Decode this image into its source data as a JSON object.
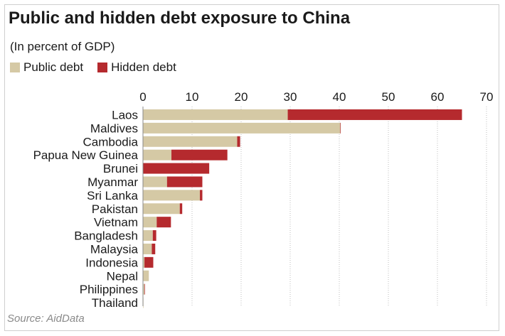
{
  "title": "Public and hidden debt exposure to China",
  "subtitle": "(In percent of GDP)",
  "source": "Source: AidData",
  "colors": {
    "public": "#d5c9a5",
    "hidden": "#b52a2e",
    "grid": "#bdbdbd",
    "text": "#1a1a1a"
  },
  "chart_data": {
    "type": "bar",
    "orientation": "horizontal",
    "stacked": true,
    "title": "Public and hidden debt exposure to China",
    "subtitle": "(In percent of GDP)",
    "xlim": [
      0,
      70
    ],
    "xticks": [
      0,
      10,
      20,
      30,
      40,
      50,
      60,
      70
    ],
    "grid": "vertical-dotted",
    "legend_position": "top-left",
    "categories": [
      "Laos",
      "Maldives",
      "Cambodia",
      "Papua New Guinea",
      "Brunei",
      "Myanmar",
      "Sri Lanka",
      "Pakistan",
      "Vietnam",
      "Bangladesh",
      "Malaysia",
      "Indonesia",
      "Nepal",
      "Philippines",
      "Thailand"
    ],
    "series": [
      {
        "name": "Public debt",
        "color": "#d5c9a5",
        "values": [
          29.5,
          40.2,
          19.2,
          5.8,
          0,
          4.9,
          11.6,
          7.5,
          2.8,
          2.0,
          1.8,
          0.3,
          1.2,
          0.3,
          0.1
        ]
      },
      {
        "name": "Hidden debt",
        "color": "#b52a2e",
        "values": [
          35.5,
          0.1,
          0.6,
          11.4,
          13.5,
          7.2,
          0.5,
          0.5,
          2.9,
          0.7,
          0.7,
          1.8,
          0,
          0.1,
          0
        ]
      }
    ]
  }
}
